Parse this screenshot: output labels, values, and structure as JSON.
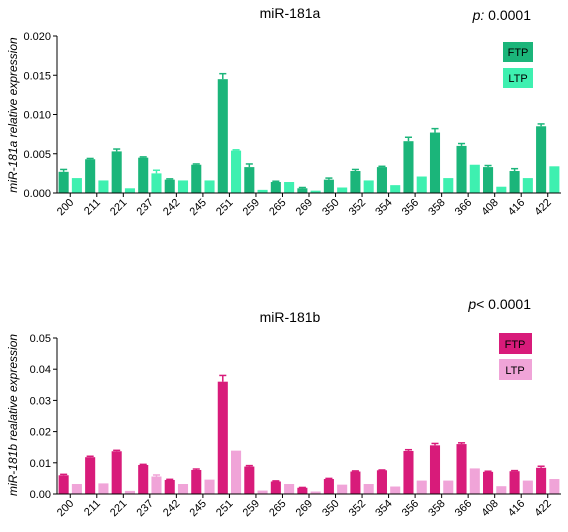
{
  "chart_data": [
    {
      "type": "bar",
      "title": "miR-181a",
      "p_label": "p:",
      "p_value": "0.0001",
      "ylabel": "miR-181a relative expression",
      "ylim": [
        0,
        0.02
      ],
      "yticks": [
        "0.000",
        "0.005",
        "0.010",
        "0.015",
        "0.020"
      ],
      "categories": [
        "200",
        "211",
        "221",
        "237",
        "242",
        "245",
        "251",
        "259",
        "265",
        "269",
        "350",
        "352",
        "354",
        "356",
        "358",
        "366",
        "408",
        "416",
        "422"
      ],
      "colors": {
        "FTP": "#1bb57a",
        "LTP": "#3ef0b0"
      },
      "legend_position": "top-right",
      "series": [
        {
          "name": "FTP",
          "values": [
            0.0027,
            0.0043,
            0.0053,
            0.0045,
            0.0017,
            0.0036,
            0.0145,
            0.0033,
            0.0014,
            0.0006,
            0.0017,
            0.0028,
            0.0033,
            0.0066,
            0.0077,
            0.006,
            0.0033,
            0.0028,
            0.0085
          ],
          "errors": [
            0.0003,
            0.0001,
            0.0003,
            0.0001,
            0.0001,
            0.0001,
            0.0007,
            0.0004,
            0.0001,
            0.0001,
            0.0002,
            0.0002,
            0.0001,
            0.0005,
            0.0005,
            0.0003,
            0.0002,
            0.0003,
            0.0003
          ]
        },
        {
          "name": "LTP",
          "values": [
            0.0019,
            0.0016,
            0.0006,
            0.0025,
            0.0016,
            0.0016,
            0.0054,
            0.0004,
            0.0014,
            0.0003,
            0.0007,
            0.0016,
            0.001,
            0.0021,
            0.0019,
            0.0036,
            0.0008,
            0.0019,
            0.0034
          ],
          "errors": [
            0,
            0,
            0,
            0.0004,
            0,
            0,
            0.0001,
            0,
            0,
            0,
            0,
            0,
            0,
            0,
            0,
            0,
            0,
            0,
            0
          ]
        }
      ]
    },
    {
      "type": "bar",
      "title": "miR-181b",
      "p_label": "p",
      "p_value": "< 0.0001",
      "ylabel": "miR-181b realative expression",
      "ylim": [
        0,
        0.05
      ],
      "yticks": [
        "0.00",
        "0.01",
        "0.02",
        "0.03",
        "0.04",
        "0.05"
      ],
      "categories": [
        "200",
        "211",
        "221",
        "237",
        "242",
        "245",
        "251",
        "259",
        "265",
        "269",
        "350",
        "352",
        "354",
        "356",
        "358",
        "366",
        "408",
        "416",
        "422"
      ],
      "colors": {
        "FTP": "#d81b7a",
        "LTP": "#f0a4d8"
      },
      "legend_position": "top-right",
      "series": [
        {
          "name": "FTP",
          "values": [
            0.006,
            0.0118,
            0.0137,
            0.0093,
            0.0045,
            0.0077,
            0.036,
            0.0088,
            0.004,
            0.002,
            0.0048,
            0.0072,
            0.0076,
            0.0138,
            0.0156,
            0.016,
            0.0071,
            0.0073,
            0.0084
          ],
          "errors": [
            0.0003,
            0.0003,
            0.0003,
            0.0002,
            0.0002,
            0.0003,
            0.002,
            0.0003,
            0.0002,
            0.0001,
            0.0002,
            0.0002,
            0.0001,
            0.0004,
            0.0006,
            0.0004,
            0.0002,
            0.0002,
            0.0005
          ]
        },
        {
          "name": "LTP",
          "values": [
            0.0032,
            0.0034,
            0.001,
            0.0056,
            0.0032,
            0.0046,
            0.0139,
            0.0011,
            0.0032,
            0.0008,
            0.003,
            0.0032,
            0.0024,
            0.0043,
            0.0043,
            0.0082,
            0.0025,
            0.0043,
            0.0048
          ],
          "errors": [
            0,
            0,
            0,
            0.0005,
            0,
            0,
            0,
            0,
            0,
            0,
            0,
            0,
            0,
            0,
            0,
            0,
            0,
            0,
            0
          ]
        }
      ]
    }
  ]
}
